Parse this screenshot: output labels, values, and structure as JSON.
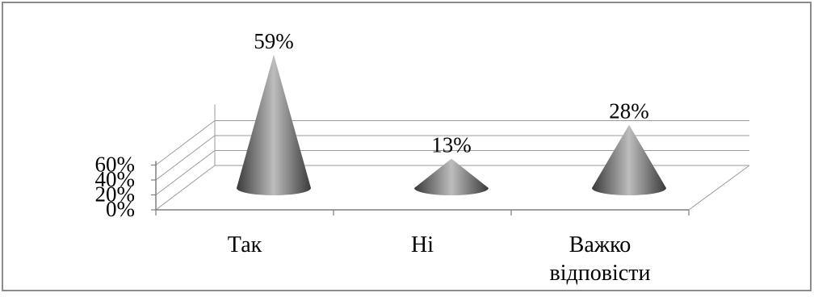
{
  "chart_data": {
    "type": "bar",
    "style": "3d-cone",
    "categories": [
      "Так",
      "Ні",
      "Важко відповісти"
    ],
    "category_lines": [
      [
        "Так"
      ],
      [
        "Ні"
      ],
      [
        "Важко",
        "відповісти"
      ]
    ],
    "values": [
      59,
      13,
      28
    ],
    "data_labels": [
      "59%",
      "13%",
      "28%"
    ],
    "ylim": [
      0,
      60
    ],
    "yticks": [
      0,
      20,
      40,
      60
    ],
    "ytick_labels": [
      "0%",
      "20%",
      "40%",
      "60%"
    ],
    "grid": true,
    "legend": "none",
    "colors": {
      "cone_dark": "#3a3a3a",
      "cone_light": "#bdbdbd",
      "grid": "#9a9a9a",
      "axis": "#7f7f7f",
      "border": "#8c8c8c"
    }
  }
}
